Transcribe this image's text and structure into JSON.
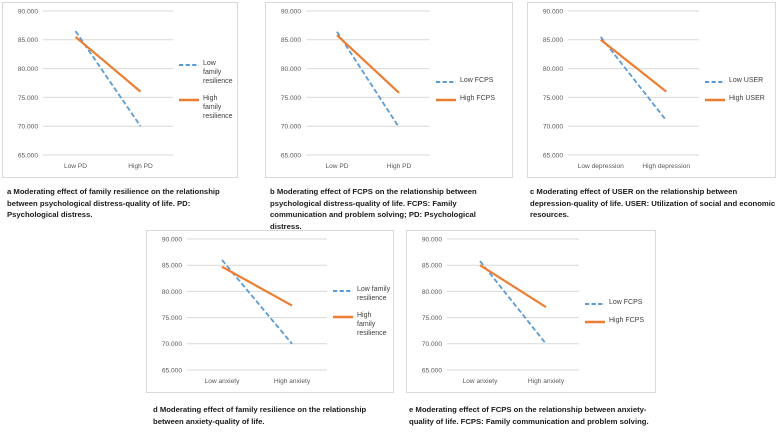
{
  "colors": {
    "series_low": "#5b9bd5",
    "series_high": "#ed7d31",
    "gridline": "#d9d9d9",
    "panel_border": "#d9d9d9",
    "axis_text": "#595959",
    "caption_text": "#1a1a1a"
  },
  "chart_data": [
    {
      "id": "a",
      "type": "line",
      "caption": "a Moderating effect of family resilience on the relationship between psychological distress-quality of life. PD: Psychological distress.",
      "categories": [
        "Low PD",
        "High PD"
      ],
      "series": [
        {
          "name": "Low family resilience",
          "values": [
            86.5,
            70.0
          ],
          "color": "#5b9bd5",
          "dash": true
        },
        {
          "name": "High family resilience",
          "values": [
            85.5,
            76.0
          ],
          "color": "#ed7d31",
          "dash": false
        }
      ],
      "ylim": [
        65,
        90
      ],
      "yticks": [
        "90.000",
        "85.000",
        "80.000",
        "75.000",
        "70.000",
        "65.000"
      ],
      "legend_position": "right",
      "grid": true
    },
    {
      "id": "b",
      "type": "line",
      "caption": "b Moderating effect of FCPS on the relationship between psychological distress-quality of life. FCPS: Family communication and problem solving; PD: Psychological distress.",
      "categories": [
        "Low PD",
        "High PD"
      ],
      "series": [
        {
          "name": "Low FCPS",
          "values": [
            86.4,
            69.8
          ],
          "color": "#5b9bd5",
          "dash": true
        },
        {
          "name": "High FCPS",
          "values": [
            85.8,
            75.8
          ],
          "color": "#ed7d31",
          "dash": false
        }
      ],
      "ylim": [
        65,
        90
      ],
      "yticks": [
        "90.000",
        "85.000",
        "80.000",
        "75.000",
        "70.000",
        "65.000"
      ],
      "legend_position": "right",
      "grid": true
    },
    {
      "id": "c",
      "type": "line",
      "caption": "c Moderating effect of USER on the relationship between depression-quality of life. USER: Utilization of social and economic resources.",
      "categories": [
        "Low depression",
        "High depression"
      ],
      "series": [
        {
          "name": "Low USER",
          "values": [
            85.5,
            71.0
          ],
          "color": "#5b9bd5",
          "dash": true
        },
        {
          "name": "High USER",
          "values": [
            85.0,
            76.0
          ],
          "color": "#ed7d31",
          "dash": false
        }
      ],
      "ylim": [
        65,
        90
      ],
      "yticks": [
        "90.000",
        "85.000",
        "80.000",
        "75.000",
        "70.000",
        "65.000"
      ],
      "legend_position": "right",
      "grid": true
    },
    {
      "id": "d",
      "type": "line",
      "caption": "d Moderating effect of family resilience on the relationship between anxiety-quality of life.",
      "categories": [
        "Low anxiety",
        "High anxiety"
      ],
      "series": [
        {
          "name": "Low family resilience",
          "values": [
            86.0,
            70.0
          ],
          "color": "#5b9bd5",
          "dash": true
        },
        {
          "name": "High family resilience",
          "values": [
            84.7,
            77.3
          ],
          "color": "#ed7d31",
          "dash": false
        }
      ],
      "ylim": [
        65,
        90
      ],
      "yticks": [
        "90.000",
        "85.000",
        "80.000",
        "75.000",
        "70.000",
        "65.000"
      ],
      "legend_position": "right",
      "grid": true
    },
    {
      "id": "e",
      "type": "line",
      "caption": "e Moderating effect of FCPS on the relationship between anxiety-quality of life. FCPS: Family communication and problem solving.",
      "categories": [
        "Low anxiety",
        "High anxiety"
      ],
      "series": [
        {
          "name": "Low FCPS",
          "values": [
            85.8,
            70.0
          ],
          "color": "#5b9bd5",
          "dash": true
        },
        {
          "name": "High FCPS",
          "values": [
            85.0,
            77.0
          ],
          "color": "#ed7d31",
          "dash": false
        }
      ],
      "ylim": [
        65,
        90
      ],
      "yticks": [
        "90.000",
        "85.000",
        "80.000",
        "75.000",
        "70.000",
        "65.000"
      ],
      "legend_position": "right",
      "grid": true
    }
  ]
}
